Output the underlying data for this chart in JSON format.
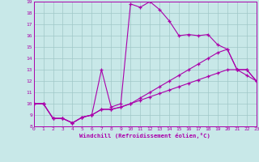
{
  "xlabel": "Windchill (Refroidissement éolien,°C)",
  "bg_color": "#c8e8e8",
  "line_color": "#aa00aa",
  "grid_color": "#a0c8c8",
  "xlim": [
    0,
    23
  ],
  "ylim": [
    8,
    19
  ],
  "xticks": [
    0,
    1,
    2,
    3,
    4,
    5,
    6,
    7,
    8,
    9,
    10,
    11,
    12,
    13,
    14,
    15,
    16,
    17,
    18,
    19,
    20,
    21,
    22,
    23
  ],
  "yticks": [
    8,
    9,
    10,
    11,
    12,
    13,
    14,
    15,
    16,
    17,
    18,
    19
  ],
  "line1_x": [
    0,
    1,
    2,
    3,
    4,
    5,
    6,
    7,
    8,
    9,
    10,
    11,
    12,
    13,
    14,
    15,
    16,
    17,
    18,
    19,
    20,
    21,
    22,
    23
  ],
  "line1_y": [
    10.0,
    10.0,
    8.7,
    8.7,
    8.3,
    8.8,
    9.0,
    13.0,
    9.7,
    10.0,
    18.8,
    18.5,
    19.0,
    18.3,
    17.3,
    16.0,
    16.1,
    16.0,
    16.1,
    15.2,
    14.8,
    13.0,
    13.0,
    12.0
  ],
  "line2_x": [
    0,
    1,
    2,
    3,
    4,
    5,
    6,
    7,
    8,
    9,
    10,
    11,
    12,
    13,
    14,
    15,
    16,
    17,
    18,
    19,
    20,
    21,
    22,
    23
  ],
  "line2_y": [
    10.0,
    10.0,
    8.7,
    8.7,
    8.3,
    8.8,
    9.0,
    9.5,
    9.5,
    9.7,
    10.0,
    10.5,
    11.0,
    11.5,
    12.0,
    12.5,
    13.0,
    13.5,
    14.0,
    14.5,
    14.8,
    13.0,
    13.0,
    12.0
  ],
  "line3_x": [
    0,
    1,
    2,
    3,
    4,
    5,
    6,
    7,
    8,
    9,
    10,
    11,
    12,
    13,
    14,
    15,
    16,
    17,
    18,
    19,
    20,
    21,
    22,
    23
  ],
  "line3_y": [
    10.0,
    10.0,
    8.7,
    8.7,
    8.3,
    8.8,
    9.0,
    9.5,
    9.5,
    9.7,
    10.0,
    10.3,
    10.6,
    10.9,
    11.2,
    11.5,
    11.8,
    12.1,
    12.4,
    12.7,
    13.0,
    13.0,
    12.5,
    12.0
  ]
}
